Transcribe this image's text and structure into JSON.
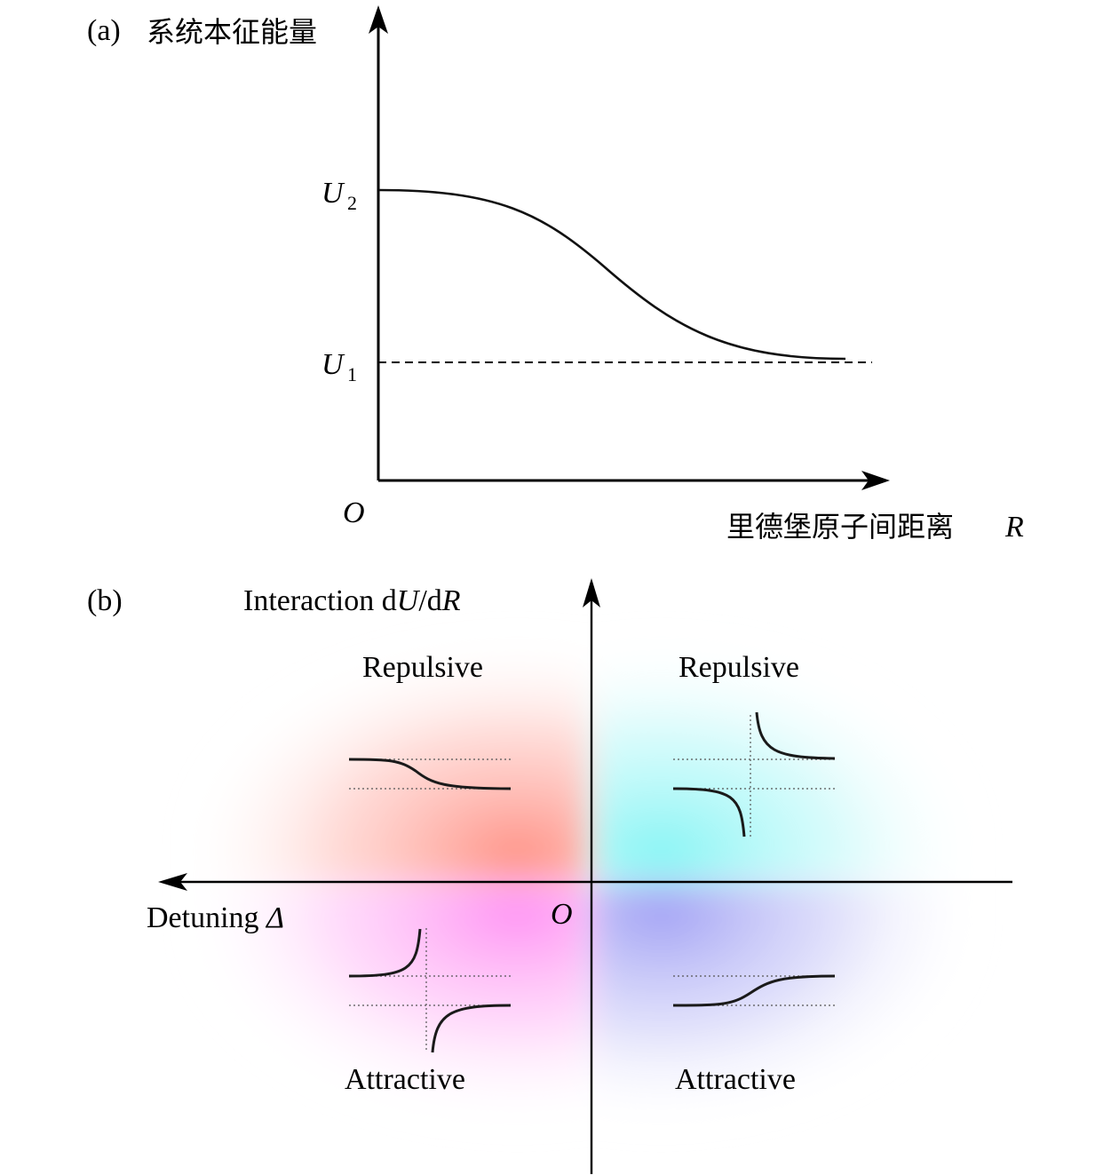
{
  "panel_a": {
    "tag": "(a)",
    "y_axis_title": "系统本征能量",
    "x_axis_title": "里德堡原子间距离",
    "x_axis_symbol": "R",
    "origin": "O",
    "u2_letter": "U",
    "u2_sub": "2",
    "u1_letter": "U",
    "u1_sub": "1"
  },
  "panel_b": {
    "tag": "(b)",
    "y_axis_title_prefix": "Interaction d",
    "y_axis_title_u": "U",
    "y_axis_title_mid": "/d",
    "y_axis_title_r": "R",
    "x_axis_title_prefix": "Detuning ",
    "x_axis_title_symbol": "Δ",
    "origin": "O",
    "quadrants": {
      "top_left": {
        "label": "Repulsive",
        "color": "#ff8c80"
      },
      "top_right": {
        "label": "Repulsive",
        "color": "#80f5f5"
      },
      "bottom_left": {
        "label": "Attractive",
        "color": "#ff8cf0"
      },
      "bottom_right": {
        "label": "Attractive",
        "color": "#a0a0f5"
      }
    }
  }
}
